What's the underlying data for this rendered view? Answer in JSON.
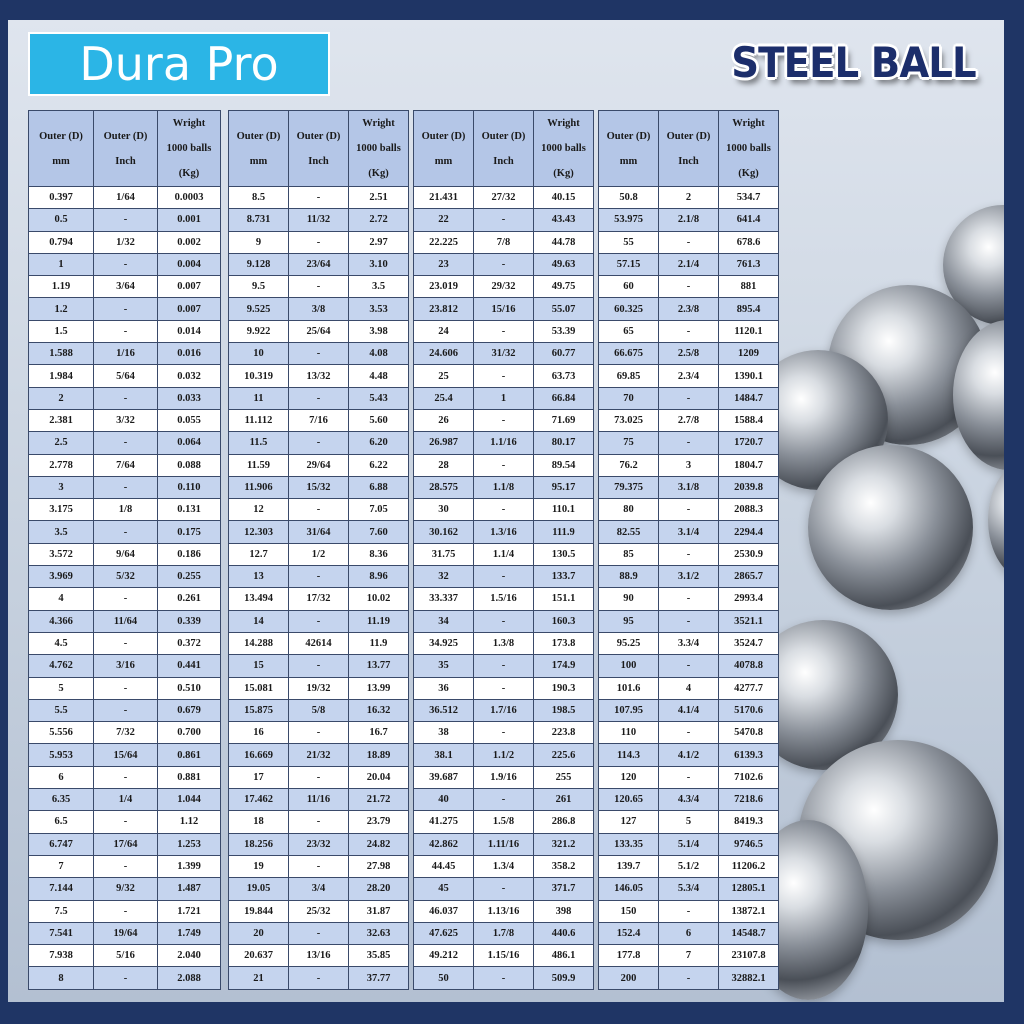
{
  "brand": "Dura Pro",
  "title": "STEEL BALL",
  "header": [
    [
      "Outer (D)",
      "mm"
    ],
    [
      "Outer (D)",
      "Inch"
    ],
    [
      "Wright",
      "1000 balls",
      "(Kg)"
    ]
  ],
  "tables": [
    [
      [
        "0.397",
        "1/64",
        "0.0003"
      ],
      [
        "0.5",
        "-",
        "0.001"
      ],
      [
        "0.794",
        "1/32",
        "0.002"
      ],
      [
        "1",
        "-",
        "0.004"
      ],
      [
        "1.19",
        "3/64",
        "0.007"
      ],
      [
        "1.2",
        "-",
        "0.007"
      ],
      [
        "1.5",
        "-",
        "0.014"
      ],
      [
        "1.588",
        "1/16",
        "0.016"
      ],
      [
        "1.984",
        "5/64",
        "0.032"
      ],
      [
        "2",
        "-",
        "0.033"
      ],
      [
        "2.381",
        "3/32",
        "0.055"
      ],
      [
        "2.5",
        "-",
        "0.064"
      ],
      [
        "2.778",
        "7/64",
        "0.088"
      ],
      [
        "3",
        "-",
        "0.110"
      ],
      [
        "3.175",
        "1/8",
        "0.131"
      ],
      [
        "3.5",
        "-",
        "0.175"
      ],
      [
        "3.572",
        "9/64",
        "0.186"
      ],
      [
        "3.969",
        "5/32",
        "0.255"
      ],
      [
        "4",
        "-",
        "0.261"
      ],
      [
        "4.366",
        "11/64",
        "0.339"
      ],
      [
        "4.5",
        "-",
        "0.372"
      ],
      [
        "4.762",
        "3/16",
        "0.441"
      ],
      [
        "5",
        "-",
        "0.510"
      ],
      [
        "5.5",
        "-",
        "0.679"
      ],
      [
        "5.556",
        "7/32",
        "0.700"
      ],
      [
        "5.953",
        "15/64",
        "0.861"
      ],
      [
        "6",
        "-",
        "0.881"
      ],
      [
        "6.35",
        "1/4",
        "1.044"
      ],
      [
        "6.5",
        "-",
        "1.12"
      ],
      [
        "6.747",
        "17/64",
        "1.253"
      ],
      [
        "7",
        "-",
        "1.399"
      ],
      [
        "7.144",
        "9/32",
        "1.487"
      ],
      [
        "7.5",
        "-",
        "1.721"
      ],
      [
        "7.541",
        "19/64",
        "1.749"
      ],
      [
        "7.938",
        "5/16",
        "2.040"
      ],
      [
        "8",
        "-",
        "2.088"
      ]
    ],
    [
      [
        "8.5",
        "-",
        "2.51"
      ],
      [
        "8.731",
        "11/32",
        "2.72"
      ],
      [
        "9",
        "-",
        "2.97"
      ],
      [
        "9.128",
        "23/64",
        "3.10"
      ],
      [
        "9.5",
        "-",
        "3.5"
      ],
      [
        "9.525",
        "3/8",
        "3.53"
      ],
      [
        "9.922",
        "25/64",
        "3.98"
      ],
      [
        "10",
        "-",
        "4.08"
      ],
      [
        "10.319",
        "13/32",
        "4.48"
      ],
      [
        "11",
        "-",
        "5.43"
      ],
      [
        "11.112",
        "7/16",
        "5.60"
      ],
      [
        "11.5",
        "-",
        "6.20"
      ],
      [
        "11.59",
        "29/64",
        "6.22"
      ],
      [
        "11.906",
        "15/32",
        "6.88"
      ],
      [
        "12",
        "-",
        "7.05"
      ],
      [
        "12.303",
        "31/64",
        "7.60"
      ],
      [
        "12.7",
        "1/2",
        "8.36"
      ],
      [
        "13",
        "-",
        "8.96"
      ],
      [
        "13.494",
        "17/32",
        "10.02"
      ],
      [
        "14",
        "-",
        "11.19"
      ],
      [
        "14.288",
        "42614",
        "11.9"
      ],
      [
        "15",
        "-",
        "13.77"
      ],
      [
        "15.081",
        "19/32",
        "13.99"
      ],
      [
        "15.875",
        "5/8",
        "16.32"
      ],
      [
        "16",
        "-",
        "16.7"
      ],
      [
        "16.669",
        "21/32",
        "18.89"
      ],
      [
        "17",
        "-",
        "20.04"
      ],
      [
        "17.462",
        "11/16",
        "21.72"
      ],
      [
        "18",
        "-",
        "23.79"
      ],
      [
        "18.256",
        "23/32",
        "24.82"
      ],
      [
        "19",
        "-",
        "27.98"
      ],
      [
        "19.05",
        "3/4",
        "28.20"
      ],
      [
        "19.844",
        "25/32",
        "31.87"
      ],
      [
        "20",
        "-",
        "32.63"
      ],
      [
        "20.637",
        "13/16",
        "35.85"
      ],
      [
        "21",
        "-",
        "37.77"
      ]
    ],
    [
      [
        "21.431",
        "27/32",
        "40.15"
      ],
      [
        "22",
        "-",
        "43.43"
      ],
      [
        "22.225",
        "7/8",
        "44.78"
      ],
      [
        "23",
        "-",
        "49.63"
      ],
      [
        "23.019",
        "29/32",
        "49.75"
      ],
      [
        "23.812",
        "15/16",
        "55.07"
      ],
      [
        "24",
        "-",
        "53.39"
      ],
      [
        "24.606",
        "31/32",
        "60.77"
      ],
      [
        "25",
        "-",
        "63.73"
      ],
      [
        "25.4",
        "1",
        "66.84"
      ],
      [
        "26",
        "-",
        "71.69"
      ],
      [
        "26.987",
        "1.1/16",
        "80.17"
      ],
      [
        "28",
        "-",
        "89.54"
      ],
      [
        "28.575",
        "1.1/8",
        "95.17"
      ],
      [
        "30",
        "-",
        "110.1"
      ],
      [
        "30.162",
        "1.3/16",
        "111.9"
      ],
      [
        "31.75",
        "1.1/4",
        "130.5"
      ],
      [
        "32",
        "-",
        "133.7"
      ],
      [
        "33.337",
        "1.5/16",
        "151.1"
      ],
      [
        "34",
        "-",
        "160.3"
      ],
      [
        "34.925",
        "1.3/8",
        "173.8"
      ],
      [
        "35",
        "-",
        "174.9"
      ],
      [
        "36",
        "-",
        "190.3"
      ],
      [
        "36.512",
        "1.7/16",
        "198.5"
      ],
      [
        "38",
        "-",
        "223.8"
      ],
      [
        "38.1",
        "1.1/2",
        "225.6"
      ],
      [
        "39.687",
        "1.9/16",
        "255"
      ],
      [
        "40",
        "-",
        "261"
      ],
      [
        "41.275",
        "1.5/8",
        "286.8"
      ],
      [
        "42.862",
        "1.11/16",
        "321.2"
      ],
      [
        "44.45",
        "1.3/4",
        "358.2"
      ],
      [
        "45",
        "-",
        "371.7"
      ],
      [
        "46.037",
        "1.13/16",
        "398"
      ],
      [
        "47.625",
        "1.7/8",
        "440.6"
      ],
      [
        "49.212",
        "1.15/16",
        "486.1"
      ],
      [
        "50",
        "-",
        "509.9"
      ]
    ],
    [
      [
        "50.8",
        "2",
        "534.7"
      ],
      [
        "53.975",
        "2.1/8",
        "641.4"
      ],
      [
        "55",
        "-",
        "678.6"
      ],
      [
        "57.15",
        "2.1/4",
        "761.3"
      ],
      [
        "60",
        "-",
        "881"
      ],
      [
        "60.325",
        "2.3/8",
        "895.4"
      ],
      [
        "65",
        "-",
        "1120.1"
      ],
      [
        "66.675",
        "2.5/8",
        "1209"
      ],
      [
        "69.85",
        "2.3/4",
        "1390.1"
      ],
      [
        "70",
        "-",
        "1484.7"
      ],
      [
        "73.025",
        "2.7/8",
        "1588.4"
      ],
      [
        "75",
        "-",
        "1720.7"
      ],
      [
        "76.2",
        "3",
        "1804.7"
      ],
      [
        "79.375",
        "3.1/8",
        "2039.8"
      ],
      [
        "80",
        "-",
        "2088.3"
      ],
      [
        "82.55",
        "3.1/4",
        "2294.4"
      ],
      [
        "85",
        "-",
        "2530.9"
      ],
      [
        "88.9",
        "3.1/2",
        "2865.7"
      ],
      [
        "90",
        "-",
        "2993.4"
      ],
      [
        "95",
        "-",
        "3521.1"
      ],
      [
        "95.25",
        "3.3/4",
        "3524.7"
      ],
      [
        "100",
        "-",
        "4078.8"
      ],
      [
        "101.6",
        "4",
        "4277.7"
      ],
      [
        "107.95",
        "4.1/4",
        "5170.6"
      ],
      [
        "110",
        "-",
        "5470.8"
      ],
      [
        "114.3",
        "4.1/2",
        "6139.3"
      ],
      [
        "120",
        "-",
        "7102.6"
      ],
      [
        "120.65",
        "4.3/4",
        "7218.6"
      ],
      [
        "127",
        "5",
        "8419.3"
      ],
      [
        "133.35",
        "5.1/4",
        "9746.5"
      ],
      [
        "139.7",
        "5.1/2",
        "11206.2"
      ],
      [
        "146.05",
        "5.3/4",
        "12805.1"
      ],
      [
        "150",
        "-",
        "13872.1"
      ],
      [
        "152.4",
        "6",
        "14548.7"
      ],
      [
        "177.8",
        "7",
        "23107.8"
      ],
      [
        "200",
        "-",
        "32882.1"
      ]
    ]
  ]
}
